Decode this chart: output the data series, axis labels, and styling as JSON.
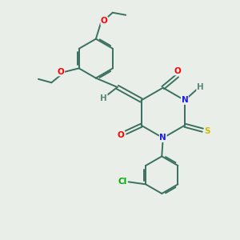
{
  "bg_color": "#eaeee8",
  "bond_color": "#3a7060",
  "bond_width": 1.4,
  "dbo": 0.055,
  "figsize": [
    3.0,
    3.0
  ],
  "dpi": 100,
  "atom_colors": {
    "O": "#ff0000",
    "N": "#1a1aff",
    "S": "#ccbb00",
    "Cl": "#00aa00",
    "H": "#5a8878"
  },
  "afs": 7.5
}
